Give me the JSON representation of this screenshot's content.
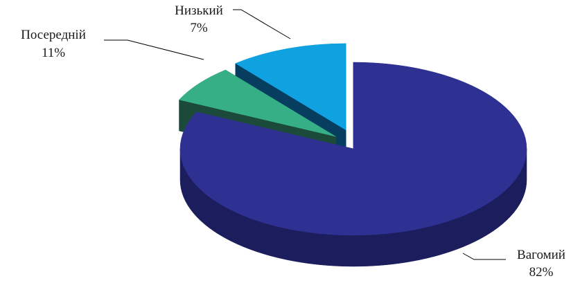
{
  "chart_data": {
    "type": "pie",
    "style": "3d-exploded",
    "legend": "none",
    "slices": [
      {
        "label": "Вагомий",
        "value": 82,
        "display": "82%",
        "color": "#2E3192",
        "side_color": "#1C1D5C"
      },
      {
        "label": "Низький",
        "value": 7,
        "display": "7%",
        "color": "#36AE86",
        "side_color": "#1B4A3A"
      },
      {
        "label": "Посередній",
        "value": 11,
        "display": "11%",
        "color": "#0FA1E0",
        "side_color": "#073D5E"
      }
    ]
  }
}
